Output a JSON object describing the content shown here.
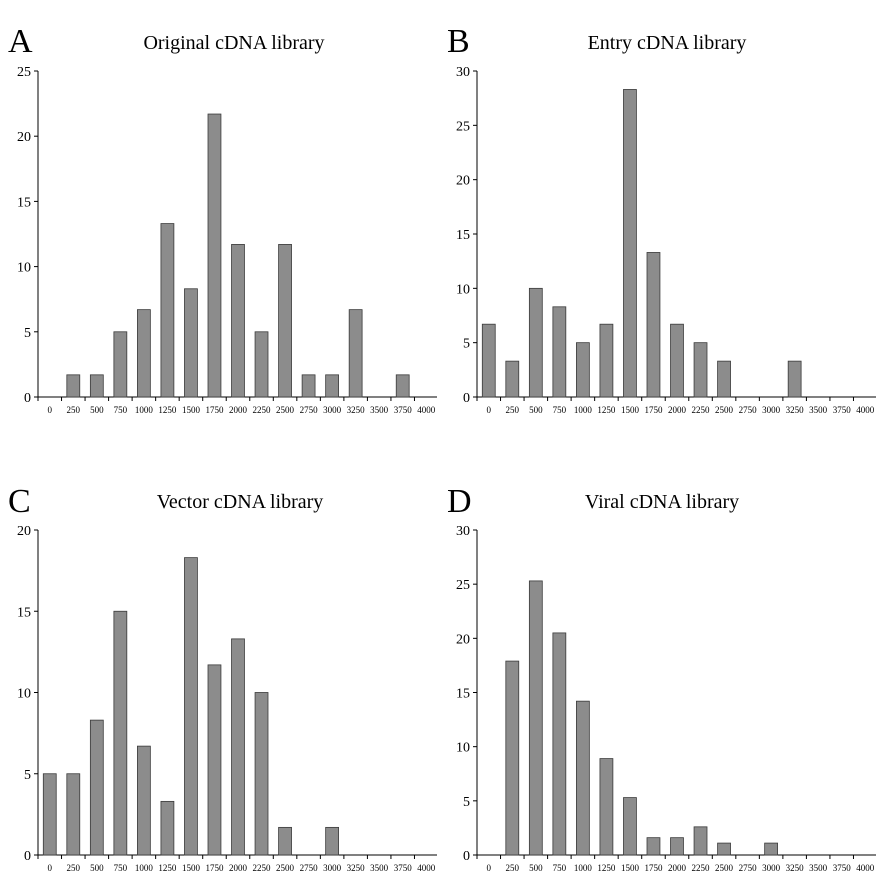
{
  "bar_color": "#8c8c8c",
  "x_tick_labels": [
    "0",
    "250",
    "500",
    "750",
    "1000",
    "1250",
    "1500",
    "1750",
    "2000",
    "2250",
    "2500",
    "2750",
    "3000",
    "3250",
    "3500",
    "3750",
    "4000"
  ],
  "chart_data": [
    {
      "type": "bar",
      "panel_label": "A",
      "title": "Original cDNA library",
      "xlabel": "",
      "ylabel": "",
      "ylim": [
        0,
        25
      ],
      "yticks": [
        0,
        5,
        10,
        15,
        20,
        25
      ],
      "grid": false,
      "categories": [
        "0",
        "250",
        "500",
        "750",
        "1000",
        "1250",
        "1500",
        "1750",
        "2000",
        "2250",
        "2500",
        "2750",
        "3000",
        "3250",
        "3500",
        "3750",
        "4000"
      ],
      "values": [
        0,
        1.7,
        1.7,
        5,
        6.7,
        13.3,
        8.3,
        21.7,
        11.7,
        5,
        11.7,
        1.7,
        1.7,
        6.7,
        0,
        1.7,
        0
      ]
    },
    {
      "type": "bar",
      "panel_label": "B",
      "title": "Entry cDNA library",
      "xlabel": "",
      "ylabel": "",
      "ylim": [
        0,
        30
      ],
      "yticks": [
        0,
        5,
        10,
        15,
        20,
        25,
        30
      ],
      "grid": false,
      "categories": [
        "0",
        "250",
        "500",
        "750",
        "1000",
        "1250",
        "1500",
        "1750",
        "2000",
        "2250",
        "2500",
        "2750",
        "3000",
        "3250",
        "3500",
        "3750",
        "4000"
      ],
      "values": [
        6.7,
        3.3,
        10,
        8.3,
        5,
        6.7,
        28.3,
        13.3,
        6.7,
        5,
        3.3,
        0,
        0,
        3.3,
        0,
        0,
        0
      ]
    },
    {
      "type": "bar",
      "panel_label": "C",
      "title": "Vector cDNA library",
      "xlabel": "",
      "ylabel": "",
      "ylim": [
        0,
        20
      ],
      "yticks": [
        0,
        5,
        10,
        15,
        20
      ],
      "grid": false,
      "categories": [
        "0",
        "250",
        "500",
        "750",
        "1000",
        "1250",
        "1500",
        "1750",
        "2000",
        "2250",
        "2500",
        "2750",
        "3000",
        "3250",
        "3500",
        "3750",
        "4000"
      ],
      "values": [
        5,
        5,
        8.3,
        15,
        6.7,
        3.3,
        18.3,
        11.7,
        13.3,
        10,
        1.7,
        0,
        1.7,
        0,
        0,
        0,
        0
      ]
    },
    {
      "type": "bar",
      "panel_label": "D",
      "title": "Viral cDNA library",
      "xlabel": "",
      "ylabel": "",
      "ylim": [
        0,
        30
      ],
      "yticks": [
        0,
        5,
        10,
        15,
        20,
        25,
        30
      ],
      "grid": false,
      "categories": [
        "0",
        "250",
        "500",
        "750",
        "1000",
        "1250",
        "1500",
        "1750",
        "2000",
        "2250",
        "2500",
        "2750",
        "3000",
        "3250",
        "3500",
        "3750",
        "4000"
      ],
      "values": [
        0,
        17.9,
        25.3,
        20.5,
        14.2,
        8.9,
        5.3,
        1.6,
        1.6,
        2.6,
        1.1,
        0,
        1.1,
        0,
        0,
        0,
        0
      ]
    }
  ]
}
